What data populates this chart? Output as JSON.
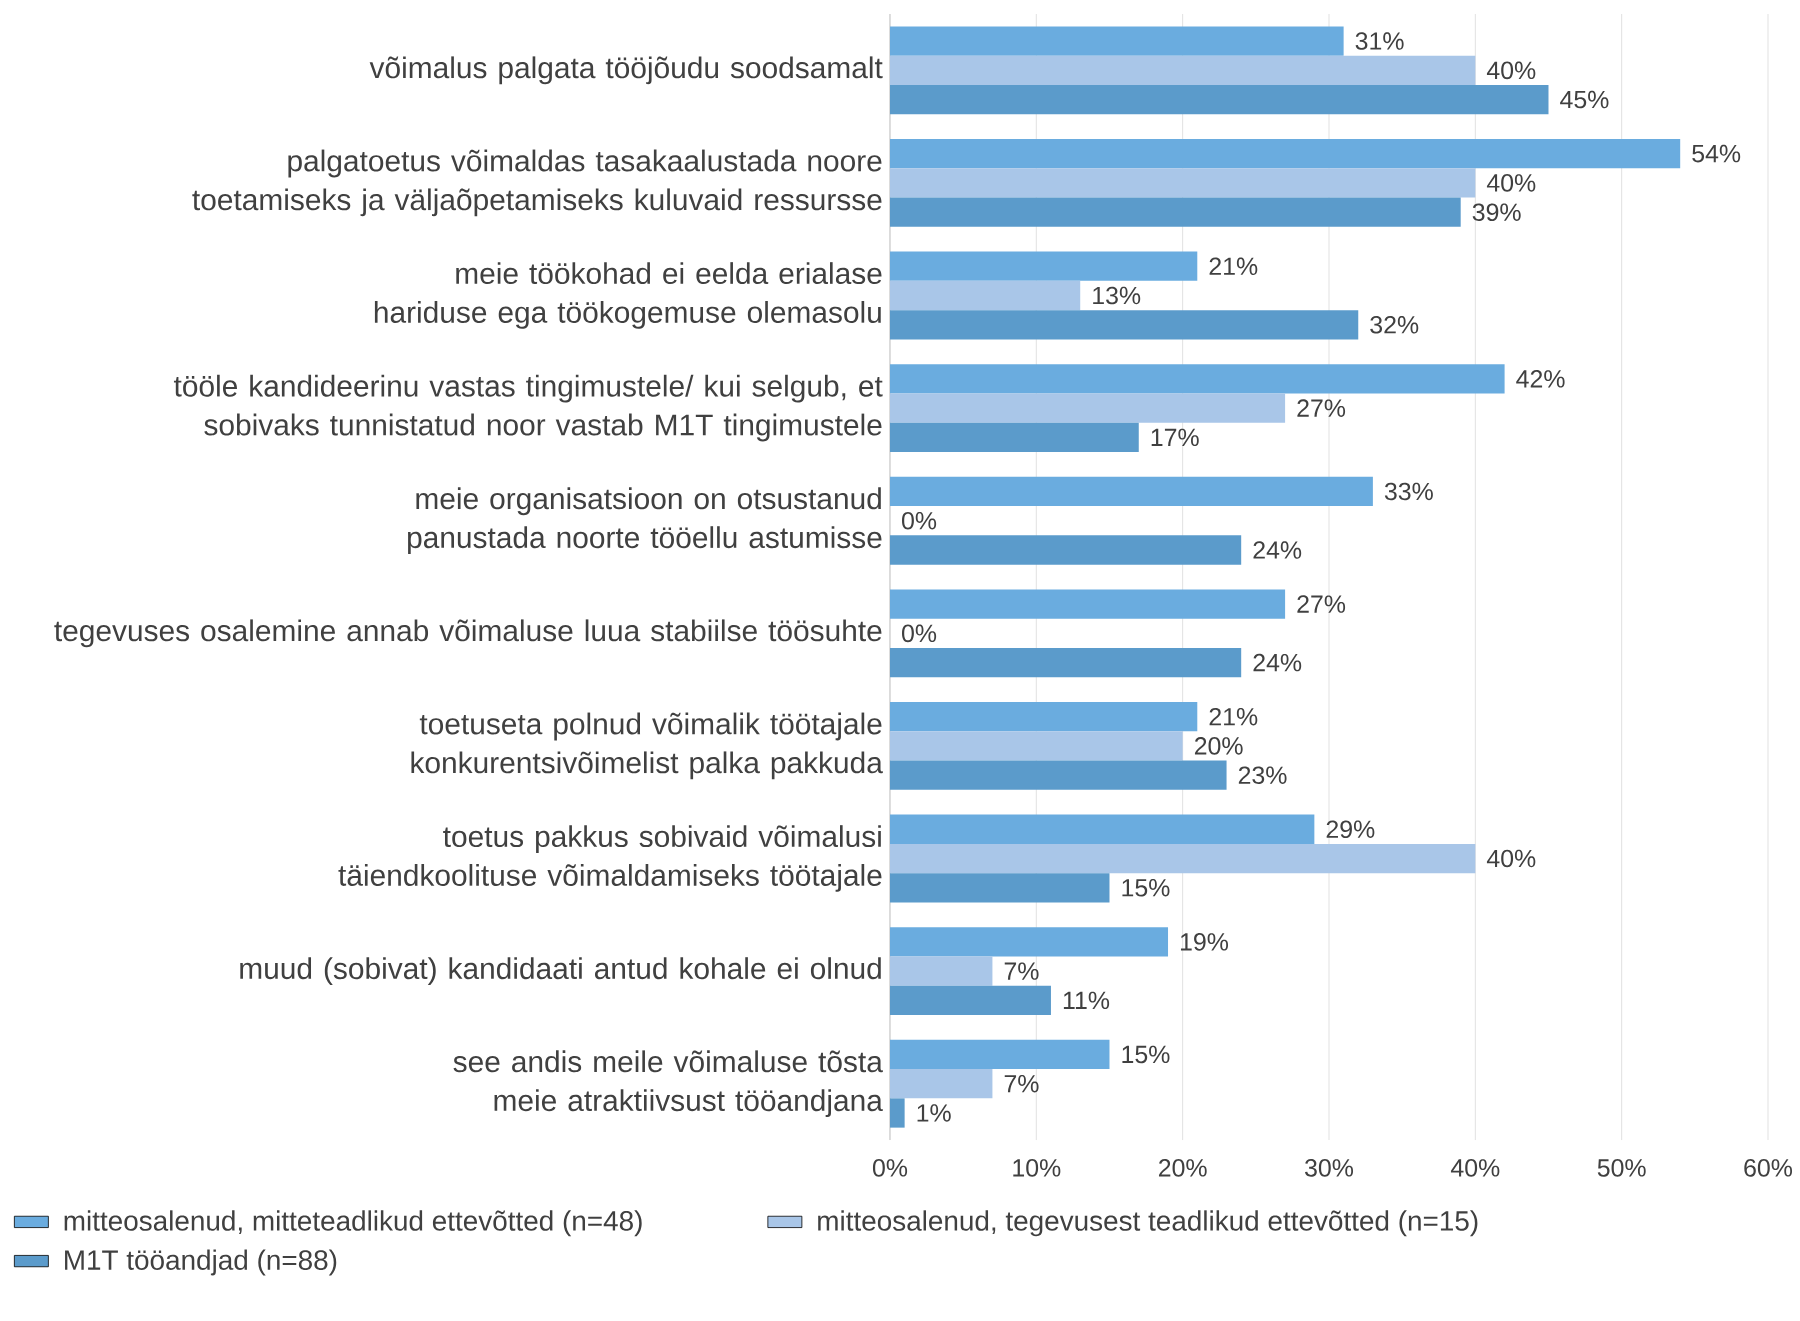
{
  "chart_data": {
    "type": "bar",
    "orientation": "horizontal",
    "categories": [
      "võimalus palgata tööjõudu soodsamalt",
      "palgatoetus võimaldas tasakaalustada noore toetamiseks ja väljaõpetamiseks kuluvaid ressursse",
      "meie töökohad ei eelda erialase hariduse ega töökogemuse olemasolu",
      "tööle kandideerinu vastas tingimustele/ kui selgub, et sobivaks tunnistatud noor vastab M1T tingimustele",
      "meie organisatsioon on otsustanud panustada noorte tööellu astumisse",
      "tegevuses osalemine annab võimaluse luua stabiilse töösuhte",
      "toetuseta polnud võimalik töötajale konkurentsivõimelist palka pakkuda",
      "toetus pakkus sobivaid võimalusi täiendkoolituse võimaldamiseks töötajale",
      "muud (sobivat) kandidaati antud kohale ei olnud",
      "see andis meile võimaluse tõsta meie atraktiivsust tööandjana"
    ],
    "series": [
      {
        "name": "mitteosalenud,  mitteteadlikud ettevõtted (n=48)",
        "color": "#6aacdf",
        "values": [
          31,
          54,
          21,
          42,
          33,
          27,
          21,
          29,
          19,
          15
        ],
        "value_labels": [
          "31%",
          "54%",
          "21%",
          "42%",
          "33%",
          "27%",
          "21%",
          "29%",
          "19%",
          "15%"
        ]
      },
      {
        "name": "mitteosalenud, tegevusest teadlikud ettevõtted (n=15)",
        "color": "#a9c6e8",
        "values": [
          40,
          40,
          13,
          27,
          0,
          0,
          20,
          40,
          7,
          7
        ],
        "value_labels": [
          "40%",
          "40%",
          "13%",
          "27%",
          "0%",
          "0%",
          "20%",
          "40%",
          "7%",
          "7%"
        ]
      },
      {
        "name": "M1T  tööandjad (n=88)",
        "color": "#5b9bcb",
        "values": [
          45,
          39,
          32,
          17,
          24,
          24,
          23,
          15,
          11,
          1
        ],
        "value_labels": [
          "45%",
          "39%",
          "32%",
          "17%",
          "24%",
          "24%",
          "23%",
          "15%",
          "11%",
          "1%"
        ]
      }
    ],
    "xlim": [
      0,
      60
    ],
    "xticks": [
      {
        "value": 0,
        "label": "0%"
      },
      {
        "value": 10,
        "label": "10%"
      },
      {
        "value": 20,
        "label": "20%"
      },
      {
        "value": 30,
        "label": "30%"
      },
      {
        "value": 40,
        "label": "40%"
      },
      {
        "value": 50,
        "label": "50%"
      },
      {
        "value": 60,
        "label": "60%"
      }
    ],
    "grid": "x",
    "legend": "bottom"
  }
}
